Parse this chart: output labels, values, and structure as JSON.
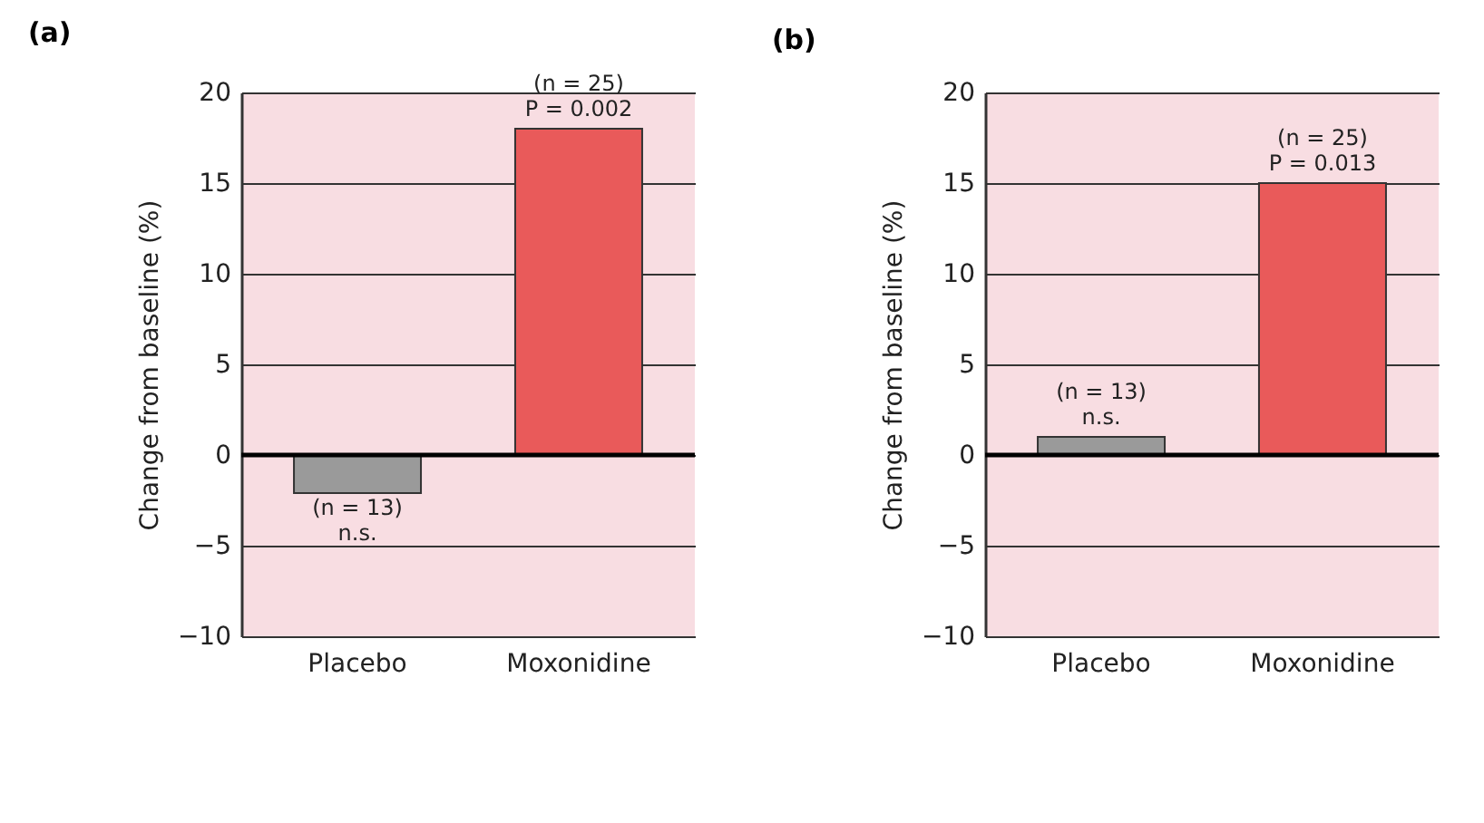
{
  "chart_data": [
    {
      "type": "bar",
      "title": "(a)",
      "ylabel": "Change from baseline (%)",
      "categories": [
        "Placebo",
        "Moxonidine"
      ],
      "values": [
        -2.1,
        18
      ],
      "colors": [
        "#9a9a9a",
        "#e95a5a"
      ],
      "ylim": [
        -10,
        20
      ],
      "yticks": [
        -10,
        -5,
        0,
        5,
        10,
        15,
        20
      ],
      "grid": "y",
      "ref_lines": [
        {
          "axis": "y",
          "value": 0,
          "color": "#000000"
        }
      ],
      "annotations": [
        {
          "text": "(n = 13)\nn.s.",
          "x": "Placebo",
          "y": -2.1
        },
        {
          "text": "(n = 25)\nP = 0.002",
          "x": "Moxonidine",
          "y": 18
        }
      ]
    },
    {
      "type": "bar",
      "title": "(b)",
      "ylabel": "Change from baseline (%)",
      "categories": [
        "Placebo",
        "Moxonidine"
      ],
      "values": [
        1,
        15
      ],
      "colors": [
        "#9a9a9a",
        "#e95a5a"
      ],
      "ylim": [
        -10,
        20
      ],
      "yticks": [
        -10,
        -5,
        0,
        5,
        10,
        15,
        20
      ],
      "grid": "y",
      "ref_lines": [
        {
          "axis": "y",
          "value": 0,
          "color": "#000000"
        }
      ],
      "annotations": [
        {
          "text": "(n = 13)\nn.s.",
          "x": "Placebo",
          "y": 1
        },
        {
          "text": "(n = 25)\nP = 0.013",
          "x": "Moxonidine",
          "y": 15
        }
      ]
    }
  ]
}
